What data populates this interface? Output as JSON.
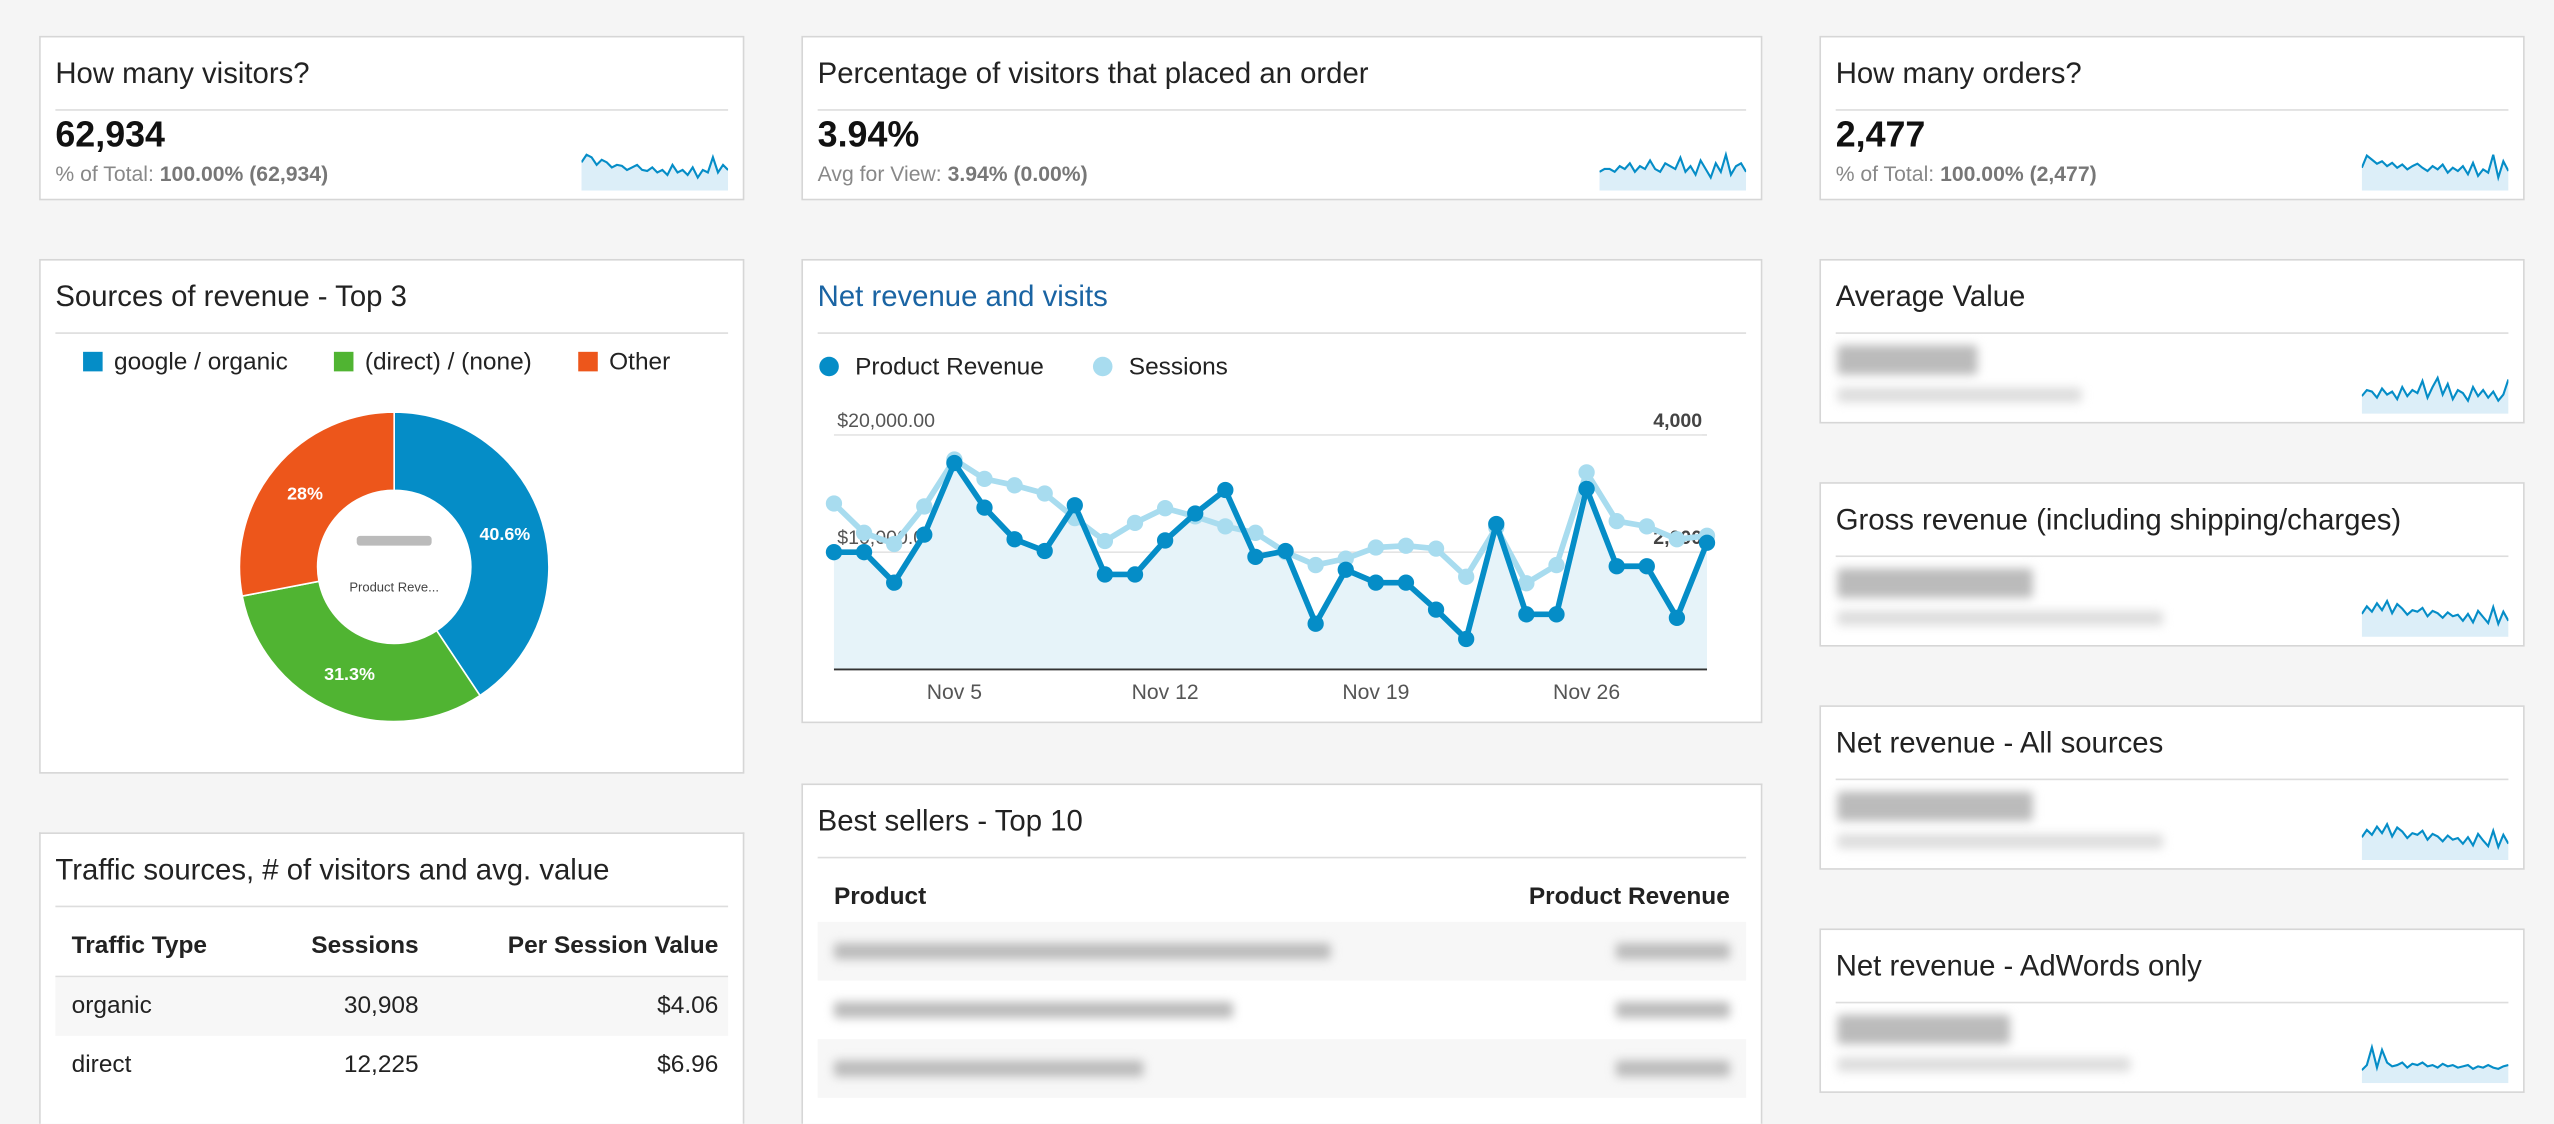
{
  "chart_data": [
    {
      "type": "pie",
      "title": "Sources of revenue - Top 3",
      "categories": [
        "google / organic",
        "(direct) / (none)",
        "Other"
      ],
      "values": [
        40.6,
        31.3,
        28
      ],
      "value_labels": [
        "40.6%",
        "31.3%",
        "28%"
      ],
      "colors": [
        "#058dc7",
        "#50b432",
        "#ed561b"
      ],
      "center_label": "Product Reve...",
      "legend": "top"
    },
    {
      "type": "line",
      "title": "Net revenue and visits",
      "categories": [
        null,
        null,
        null,
        null,
        "Nov 5",
        null,
        null,
        null,
        null,
        null,
        null,
        "Nov 12",
        null,
        null,
        null,
        null,
        null,
        null,
        "Nov 19",
        null,
        null,
        null,
        null,
        null,
        null,
        "Nov 26",
        null,
        null,
        null,
        null
      ],
      "series": [
        {
          "name": "Product Revenue",
          "color": "#058dc7",
          "values": [
            10000,
            10000,
            7400,
            11500,
            17600,
            13800,
            11100,
            10100,
            14000,
            8100,
            8100,
            11000,
            13300,
            15300,
            9600,
            10100,
            3900,
            8500,
            7400,
            7400,
            5100,
            2600,
            12400,
            4700,
            4700,
            15400,
            8800,
            8800,
            4400,
            10800
          ]
        },
        {
          "name": "Sessions",
          "color": "#a8dcef",
          "axis": "y2",
          "values": [
            2830,
            2330,
            2140,
            2780,
            3580,
            3250,
            3140,
            3000,
            2580,
            2190,
            2500,
            2750,
            2610,
            2440,
            2330,
            2000,
            1780,
            1890,
            2080,
            2110,
            2060,
            1580,
            2420,
            1470,
            1780,
            3360,
            2530,
            2440,
            2220,
            2280
          ]
        }
      ],
      "ylim": [
        0,
        20000
      ],
      "yticks": [
        {
          "value": 10000,
          "label": "$10,000.00"
        },
        {
          "value": 20000,
          "label": "$20,000.00"
        }
      ],
      "y2lim": [
        0,
        4000
      ],
      "y2ticks": [
        {
          "value": 2000,
          "label": "2,000"
        },
        {
          "value": 4000,
          "label": "4,000"
        }
      ],
      "grid": true,
      "legend": "top"
    },
    {
      "type": "area",
      "title": "How many visitors?",
      "headline": "62,934",
      "note_label": "% of Total:",
      "note_value": "100.00% (62,934)",
      "color": "#058dc7",
      "values": [
        2150,
        2300,
        2250,
        2100,
        2200,
        2150,
        2050,
        2100,
        2080,
        2000,
        2050,
        2100,
        2000,
        1980,
        2050,
        1950,
        2000,
        1900,
        2100,
        1950,
        2000,
        1900,
        2050,
        1850,
        2000,
        1950,
        2250,
        1950,
        2100,
        2000
      ]
    },
    {
      "type": "area",
      "title": "Percentage of visitors that placed an order",
      "headline": "3.94%",
      "note_label": "Avg for View:",
      "note_value": "3.94% (0.00%)",
      "color": "#058dc7",
      "values": [
        3.8,
        3.9,
        3.9,
        3.8,
        4.0,
        3.9,
        4.1,
        3.8,
        4.0,
        3.9,
        4.2,
        3.9,
        3.8,
        4.1,
        4.0,
        3.9,
        4.3,
        3.8,
        4.0,
        3.7,
        4.2,
        3.9,
        3.6,
        4.1,
        3.8,
        4.4,
        3.7,
        4.0,
        4.1,
        3.8
      ]
    },
    {
      "type": "area",
      "title": "How many orders?",
      "headline": "2,477",
      "note_label": "% of Total:",
      "note_value": "100.00% (2,477)",
      "color": "#058dc7",
      "values": [
        80,
        95,
        90,
        85,
        88,
        82,
        86,
        80,
        84,
        78,
        82,
        85,
        80,
        76,
        82,
        78,
        84,
        74,
        80,
        76,
        82,
        72,
        86,
        70,
        78,
        74,
        96,
        68,
        88,
        76
      ]
    },
    {
      "type": "area",
      "title": "Average Value",
      "color": "#058dc7",
      "values": [
        100,
        104,
        103,
        99,
        105,
        101,
        103,
        98,
        106,
        100,
        104,
        102,
        110,
        99,
        106,
        112,
        101,
        108,
        98,
        104,
        102,
        97,
        106,
        100,
        104,
        99,
        103,
        97,
        101,
        111
      ]
    },
    {
      "type": "area",
      "title": "Gross revenue (including shipping/charges)",
      "color": "#058dc7",
      "values": [
        8500,
        9500,
        8800,
        9900,
        9000,
        10200,
        8600,
        9800,
        9200,
        8400,
        9000,
        8800,
        9300,
        8200,
        8900,
        8600,
        8000,
        8700,
        8200,
        8400,
        7600,
        8500,
        7400,
        8900,
        8100,
        7300,
        9400,
        7200,
        8800,
        7600
      ]
    },
    {
      "type": "area",
      "title": "Net revenue - All sources",
      "color": "#058dc7",
      "values": [
        7800,
        8700,
        8100,
        9100,
        8300,
        9400,
        7900,
        9000,
        8500,
        7700,
        8300,
        8100,
        8600,
        7500,
        8200,
        7900,
        7300,
        8000,
        7500,
        7700,
        7000,
        7800,
        6800,
        8200,
        7400,
        6700,
        8600,
        6600,
        8100,
        7000
      ]
    },
    {
      "type": "area",
      "title": "Net revenue - AdWords only",
      "color": "#058dc7",
      "values": [
        500,
        700,
        1400,
        600,
        1300,
        800,
        650,
        700,
        800,
        600,
        750,
        700,
        800,
        650,
        700,
        600,
        750,
        650,
        700,
        600,
        650,
        700,
        550,
        650,
        600,
        700,
        600,
        550,
        650,
        700
      ]
    }
  ],
  "tables": [
    {
      "title": "Traffic sources, # of visitors and avg. value",
      "columns": [
        "Traffic Type",
        "Sessions",
        "Per Session Value"
      ],
      "rows": [
        [
          "organic",
          "30,908",
          "$4.06"
        ],
        [
          "direct",
          "12,225",
          "$6.96"
        ]
      ]
    },
    {
      "title": "Best sellers - Top 10",
      "columns": [
        "Product",
        "Product Revenue"
      ]
    }
  ]
}
